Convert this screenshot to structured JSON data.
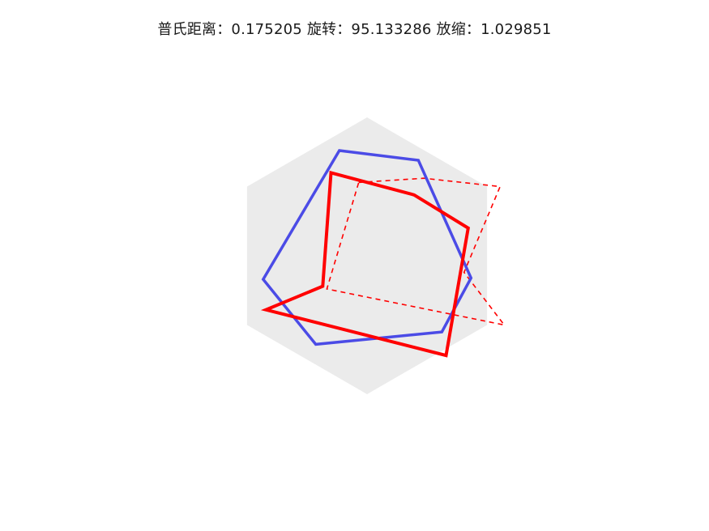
{
  "figure": {
    "title": "普氏距离：0.175205 旋转：95.133286 放缩：1.029851"
  },
  "colors": {
    "background": "#ffffff",
    "hexagon_fill": "#ebebeb",
    "shape_a_stroke": "#4b4be6",
    "shape_b_stroke": "#ff0000",
    "shape_b_dashed_stroke": "#ff0000"
  },
  "chart_data": {
    "type": "shape-overlay",
    "title": "普氏距离：0.175205 旋转：95.133286 放缩：1.029851",
    "procrustes_distance": 0.175205,
    "rotation_deg": 95.133286,
    "scale": 1.029851,
    "axes_visible": false,
    "xlim": [
      -1.0,
      1.0
    ],
    "ylim": [
      -1.0,
      1.0
    ],
    "reference_hexagon": {
      "points": [
        [
          0.0,
          1.0
        ],
        [
          0.866,
          0.5
        ],
        [
          0.866,
          -0.5
        ],
        [
          0.0,
          -1.0
        ],
        [
          -0.866,
          -0.5
        ],
        [
          -0.866,
          0.5
        ]
      ]
    },
    "series": [
      {
        "style": "solid",
        "points": [
          [
            -0.2,
            0.76
          ],
          [
            0.37,
            0.69
          ],
          [
            0.75,
            -0.16
          ],
          [
            0.54,
            -0.55
          ],
          [
            -0.37,
            -0.64
          ],
          [
            -0.75,
            -0.17
          ]
        ]
      },
      {
        "style": "solid-bold",
        "points": [
          [
            -0.26,
            0.6
          ],
          [
            0.34,
            0.44
          ],
          [
            0.73,
            0.2
          ],
          [
            0.57,
            -0.72
          ],
          [
            -0.73,
            -0.39
          ],
          [
            -0.32,
            -0.22
          ]
        ]
      },
      {
        "style": "dashed",
        "points": [
          [
            -0.06,
            0.53
          ],
          [
            0.41,
            0.56
          ],
          [
            0.96,
            0.5
          ],
          [
            0.7,
            -0.12
          ],
          [
            0.99,
            -0.5
          ],
          [
            -0.29,
            -0.24
          ]
        ]
      }
    ]
  }
}
